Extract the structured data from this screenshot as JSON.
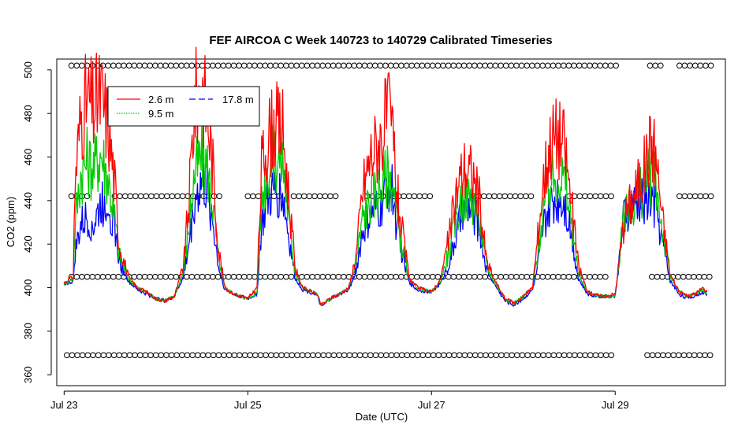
{
  "chart_data": {
    "type": "line",
    "title": "FEF AIRCOA C  Week 140723 to 140729  Calibrated Timeseries",
    "xlabel": "Date (UTC)",
    "ylabel": "CO2 (ppm)",
    "xlim": [
      -0.08,
      7.2
    ],
    "ylim": [
      355,
      505
    ],
    "x_unit": "days since Jul 23 00:00 UTC",
    "xticks": [
      {
        "value": 0,
        "label": "Jul 23"
      },
      {
        "value": 2,
        "label": "Jul 25"
      },
      {
        "value": 4,
        "label": "Jul 27"
      },
      {
        "value": 6,
        "label": "Jul 29"
      }
    ],
    "yticks": [
      {
        "value": 360,
        "label": "360"
      },
      {
        "value": 380,
        "label": "380"
      },
      {
        "value": 400,
        "label": "400"
      },
      {
        "value": 420,
        "label": "420"
      },
      {
        "value": 440,
        "label": "440"
      },
      {
        "value": 460,
        "label": "460"
      },
      {
        "value": 480,
        "label": "480"
      },
      {
        "value": 500,
        "label": "500"
      }
    ],
    "legend": {
      "placement": "top-left",
      "entries": [
        {
          "label": "2.6 m",
          "color": "#ff0000"
        },
        {
          "label": "9.5 m",
          "color": "#00cc00"
        },
        {
          "label": "17.8 m",
          "color": "#0000ff"
        }
      ]
    },
    "series": [
      {
        "name": "2.6 m",
        "color": "#ff0000",
        "points": [
          [
            0,
            402
          ],
          [
            0.05,
            404
          ],
          [
            0.1,
            405
          ],
          [
            0.12,
            450
          ],
          [
            0.18,
            478
          ],
          [
            0.25,
            486
          ],
          [
            0.32,
            482
          ],
          [
            0.4,
            488
          ],
          [
            0.48,
            475
          ],
          [
            0.55,
            448
          ],
          [
            0.6,
            420
          ],
          [
            0.7,
            405
          ],
          [
            0.8,
            400
          ],
          [
            0.9,
            398
          ],
          [
            1.0,
            395
          ],
          [
            1.1,
            394
          ],
          [
            1.2,
            396
          ],
          [
            1.3,
            410
          ],
          [
            1.36,
            440
          ],
          [
            1.42,
            485
          ],
          [
            1.5,
            492
          ],
          [
            1.56,
            480
          ],
          [
            1.62,
            455
          ],
          [
            1.68,
            418
          ],
          [
            1.75,
            400
          ],
          [
            1.85,
            397
          ],
          [
            2.0,
            395
          ],
          [
            2.1,
            400
          ],
          [
            2.15,
            455
          ],
          [
            2.22,
            470
          ],
          [
            2.3,
            474
          ],
          [
            2.38,
            472
          ],
          [
            2.45,
            440
          ],
          [
            2.52,
            408
          ],
          [
            2.6,
            400
          ],
          [
            2.75,
            397
          ],
          [
            2.8,
            392
          ],
          [
            2.9,
            395
          ],
          [
            3.0,
            397
          ],
          [
            3.1,
            400
          ],
          [
            3.18,
            415
          ],
          [
            3.25,
            445
          ],
          [
            3.35,
            462
          ],
          [
            3.45,
            468
          ],
          [
            3.52,
            480
          ],
          [
            3.58,
            470
          ],
          [
            3.62,
            445
          ],
          [
            3.7,
            420
          ],
          [
            3.76,
            404
          ],
          [
            3.85,
            400
          ],
          [
            4.0,
            398
          ],
          [
            4.1,
            404
          ],
          [
            4.2,
            425
          ],
          [
            4.28,
            445
          ],
          [
            4.35,
            455
          ],
          [
            4.45,
            452
          ],
          [
            4.52,
            440
          ],
          [
            4.6,
            412
          ],
          [
            4.68,
            404
          ],
          [
            4.8,
            395
          ],
          [
            4.9,
            393
          ],
          [
            5.0,
            396
          ],
          [
            5.1,
            400
          ],
          [
            5.15,
            420
          ],
          [
            5.22,
            450
          ],
          [
            5.3,
            468
          ],
          [
            5.38,
            470
          ],
          [
            5.45,
            465
          ],
          [
            5.52,
            440
          ],
          [
            5.6,
            410
          ],
          [
            5.7,
            398
          ],
          [
            5.85,
            396
          ],
          [
            6.0,
            397
          ],
          [
            6.1,
            432
          ],
          [
            6.3,
            452
          ],
          [
            6.4,
            468
          ],
          [
            6.45,
            458
          ],
          [
            6.52,
            430
          ],
          [
            6.6,
            406
          ],
          [
            6.7,
            398
          ],
          [
            6.8,
            396
          ],
          [
            6.9,
            398
          ],
          [
            6.95,
            400
          ],
          [
            7.0,
            398
          ]
        ]
      },
      {
        "name": "9.5 m",
        "color": "#00cc00",
        "points": [
          [
            0,
            402
          ],
          [
            0.05,
            403
          ],
          [
            0.1,
            404
          ],
          [
            0.12,
            430
          ],
          [
            0.18,
            452
          ],
          [
            0.25,
            458
          ],
          [
            0.32,
            455
          ],
          [
            0.4,
            462
          ],
          [
            0.48,
            450
          ],
          [
            0.55,
            432
          ],
          [
            0.6,
            415
          ],
          [
            0.7,
            404
          ],
          [
            0.8,
            400
          ],
          [
            0.9,
            398
          ],
          [
            1.0,
            395
          ],
          [
            1.1,
            394
          ],
          [
            1.2,
            396
          ],
          [
            1.3,
            407
          ],
          [
            1.36,
            428
          ],
          [
            1.42,
            452
          ],
          [
            1.5,
            460
          ],
          [
            1.56,
            455
          ],
          [
            1.62,
            438
          ],
          [
            1.68,
            414
          ],
          [
            1.75,
            400
          ],
          [
            1.85,
            397
          ],
          [
            2.0,
            395
          ],
          [
            2.1,
            398
          ],
          [
            2.15,
            440
          ],
          [
            2.22,
            455
          ],
          [
            2.3,
            460
          ],
          [
            2.38,
            458
          ],
          [
            2.45,
            430
          ],
          [
            2.52,
            406
          ],
          [
            2.6,
            400
          ],
          [
            2.75,
            397
          ],
          [
            2.8,
            392
          ],
          [
            2.9,
            395
          ],
          [
            3.0,
            397
          ],
          [
            3.1,
            400
          ],
          [
            3.18,
            412
          ],
          [
            3.25,
            432
          ],
          [
            3.35,
            442
          ],
          [
            3.45,
            446
          ],
          [
            3.52,
            452
          ],
          [
            3.58,
            448
          ],
          [
            3.62,
            432
          ],
          [
            3.7,
            415
          ],
          [
            3.76,
            403
          ],
          [
            3.85,
            400
          ],
          [
            4.0,
            398
          ],
          [
            4.1,
            403
          ],
          [
            4.2,
            418
          ],
          [
            4.28,
            434
          ],
          [
            4.35,
            442
          ],
          [
            4.45,
            440
          ],
          [
            4.52,
            432
          ],
          [
            4.6,
            410
          ],
          [
            4.68,
            403
          ],
          [
            4.8,
            395
          ],
          [
            4.9,
            393
          ],
          [
            5.0,
            396
          ],
          [
            5.1,
            400
          ],
          [
            5.15,
            414
          ],
          [
            5.22,
            436
          ],
          [
            5.3,
            448
          ],
          [
            5.38,
            452
          ],
          [
            5.45,
            448
          ],
          [
            5.52,
            432
          ],
          [
            5.6,
            406
          ],
          [
            5.7,
            398
          ],
          [
            5.85,
            396
          ],
          [
            6.0,
            396
          ],
          [
            6.1,
            434
          ],
          [
            6.3,
            445
          ],
          [
            6.4,
            452
          ],
          [
            6.45,
            446
          ],
          [
            6.52,
            425
          ],
          [
            6.6,
            405
          ],
          [
            6.7,
            398
          ],
          [
            6.8,
            396
          ],
          [
            6.9,
            398
          ],
          [
            6.95,
            399
          ],
          [
            7.0,
            398
          ]
        ]
      },
      {
        "name": "17.8 m",
        "color": "#0000ff",
        "points": [
          [
            0,
            402
          ],
          [
            0.05,
            402
          ],
          [
            0.1,
            403
          ],
          [
            0.12,
            416
          ],
          [
            0.18,
            428
          ],
          [
            0.25,
            432
          ],
          [
            0.32,
            428
          ],
          [
            0.4,
            438
          ],
          [
            0.48,
            440
          ],
          [
            0.55,
            428
          ],
          [
            0.6,
            412
          ],
          [
            0.7,
            403
          ],
          [
            0.8,
            399
          ],
          [
            0.9,
            397
          ],
          [
            1.0,
            395
          ],
          [
            1.1,
            394
          ],
          [
            1.2,
            396
          ],
          [
            1.3,
            405
          ],
          [
            1.36,
            420
          ],
          [
            1.42,
            440
          ],
          [
            1.5,
            448
          ],
          [
            1.56,
            444
          ],
          [
            1.62,
            430
          ],
          [
            1.68,
            410
          ],
          [
            1.75,
            399
          ],
          [
            1.85,
            397
          ],
          [
            2.0,
            395
          ],
          [
            2.1,
            397
          ],
          [
            2.15,
            428
          ],
          [
            2.22,
            440
          ],
          [
            2.3,
            444
          ],
          [
            2.38,
            442
          ],
          [
            2.45,
            422
          ],
          [
            2.52,
            404
          ],
          [
            2.6,
            399
          ],
          [
            2.75,
            397
          ],
          [
            2.8,
            391
          ],
          [
            2.9,
            395
          ],
          [
            3.0,
            397
          ],
          [
            3.1,
            399
          ],
          [
            3.18,
            408
          ],
          [
            3.25,
            425
          ],
          [
            3.35,
            434
          ],
          [
            3.45,
            436
          ],
          [
            3.52,
            448
          ],
          [
            3.58,
            444
          ],
          [
            3.62,
            428
          ],
          [
            3.7,
            412
          ],
          [
            3.76,
            402
          ],
          [
            3.85,
            399
          ],
          [
            4.0,
            398
          ],
          [
            4.1,
            402
          ],
          [
            4.2,
            412
          ],
          [
            4.28,
            426
          ],
          [
            4.35,
            436
          ],
          [
            4.45,
            436
          ],
          [
            4.52,
            428
          ],
          [
            4.6,
            408
          ],
          [
            4.68,
            402
          ],
          [
            4.8,
            394
          ],
          [
            4.9,
            392
          ],
          [
            5.0,
            395
          ],
          [
            5.1,
            399
          ],
          [
            5.15,
            408
          ],
          [
            5.22,
            428
          ],
          [
            5.3,
            438
          ],
          [
            5.38,
            442
          ],
          [
            5.45,
            440
          ],
          [
            5.52,
            426
          ],
          [
            5.6,
            404
          ],
          [
            5.7,
            397
          ],
          [
            5.85,
            396
          ],
          [
            6.0,
            396
          ],
          [
            6.1,
            434
          ],
          [
            6.3,
            440
          ],
          [
            6.4,
            440
          ],
          [
            6.45,
            436
          ],
          [
            6.52,
            420
          ],
          [
            6.6,
            403
          ],
          [
            6.7,
            397
          ],
          [
            6.8,
            395
          ],
          [
            6.9,
            397
          ],
          [
            6.95,
            398
          ],
          [
            7.0,
            397
          ]
        ]
      }
    ],
    "reference_points": [
      {
        "name": "reference tank ~502 ppm",
        "y": 502,
        "segments": [
          [
            0.08,
            6.02
          ],
          [
            6.38,
            6.55
          ],
          [
            6.7,
            7.05
          ]
        ]
      },
      {
        "name": "reference tank ~442 ppm",
        "y": 442,
        "segments": [
          [
            0.08,
            0.3
          ],
          [
            0.55,
            1.7
          ],
          [
            2.0,
            2.35
          ],
          [
            2.5,
            3.0
          ],
          [
            3.3,
            4.0
          ],
          [
            4.4,
            5.1
          ],
          [
            5.5,
            6.0
          ],
          [
            6.7,
            7.05
          ]
        ]
      },
      {
        "name": "reference tank ~405 ppm",
        "y": 405,
        "segments": [
          [
            0.08,
            5.95
          ],
          [
            6.4,
            7.05
          ]
        ]
      },
      {
        "name": "reference tank ~369 ppm",
        "y": 369,
        "segments": [
          [
            0.03,
            6.0
          ],
          [
            6.35,
            7.05
          ]
        ]
      }
    ]
  }
}
